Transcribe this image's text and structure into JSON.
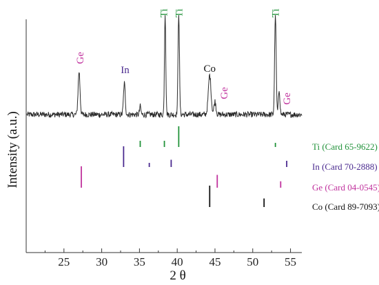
{
  "chart_data": {
    "type": "line",
    "xlabel": "2 θ",
    "ylabel": "Intensity (a.u.)",
    "xlim": [
      20,
      56.5
    ],
    "x_ticks": [
      25,
      30,
      35,
      40,
      45,
      50,
      55
    ],
    "pattern": {
      "baseline": 0.1,
      "noise": 0.035,
      "peaks": [
        {
          "x": 27.0,
          "height": 0.52,
          "width": 0.18
        },
        {
          "x": 33.0,
          "height": 0.38,
          "width": 0.16
        },
        {
          "x": 35.1,
          "height": 0.1,
          "width": 0.12
        },
        {
          "x": 38.4,
          "height": 1.25,
          "width": 0.12
        },
        {
          "x": 40.2,
          "height": 1.25,
          "width": 0.13
        },
        {
          "x": 44.3,
          "height": 0.48,
          "width": 0.25
        },
        {
          "x": 45.0,
          "height": 0.16,
          "width": 0.18
        },
        {
          "x": 53.0,
          "height": 1.25,
          "width": 0.14
        },
        {
          "x": 53.5,
          "height": 0.3,
          "width": 0.14
        }
      ]
    },
    "peak_labels": [
      {
        "text": "Ge",
        "x": 27.1,
        "color": "#c0319d"
      },
      {
        "text": "In",
        "x": 33.1,
        "color": "#4a2a8f"
      },
      {
        "text": "Ti",
        "x": 38.2,
        "color": "#21923a"
      },
      {
        "text": "Ti",
        "x": 40.2,
        "color": "#21923a"
      },
      {
        "text": "Co",
        "x": 44.3,
        "color": "#111111"
      },
      {
        "text": "Ge",
        "x": 46.2,
        "color": "#c0319d"
      },
      {
        "text": "Ti",
        "x": 53.0,
        "color": "#21923a"
      },
      {
        "text": "Ge",
        "x": 54.5,
        "color": "#c0319d"
      }
    ],
    "reference_cards": [
      {
        "name": "Ti (Card 65-9622)",
        "color": "#21923a",
        "lines": [
          {
            "x": 35.1,
            "i": 0.3
          },
          {
            "x": 38.3,
            "i": 0.3
          },
          {
            "x": 40.2,
            "i": 1.0
          },
          {
            "x": 53.0,
            "i": 0.2
          }
        ]
      },
      {
        "name": "In (Card 70-2888)",
        "color": "#4a2a8f",
        "lines": [
          {
            "x": 32.9,
            "i": 1.0
          },
          {
            "x": 36.3,
            "i": 0.2
          },
          {
            "x": 39.2,
            "i": 0.35
          },
          {
            "x": 54.5,
            "i": 0.3
          }
        ]
      },
      {
        "name": "Ge (Card 04-0545)",
        "color": "#c0319d",
        "lines": [
          {
            "x": 27.3,
            "i": 1.0
          },
          {
            "x": 45.3,
            "i": 0.6
          },
          {
            "x": 53.7,
            "i": 0.3
          }
        ]
      },
      {
        "name": "Co (Card 89-7093)",
        "color": "#111111",
        "lines": [
          {
            "x": 44.3,
            "i": 1.0
          },
          {
            "x": 51.5,
            "i": 0.4
          }
        ]
      }
    ]
  }
}
